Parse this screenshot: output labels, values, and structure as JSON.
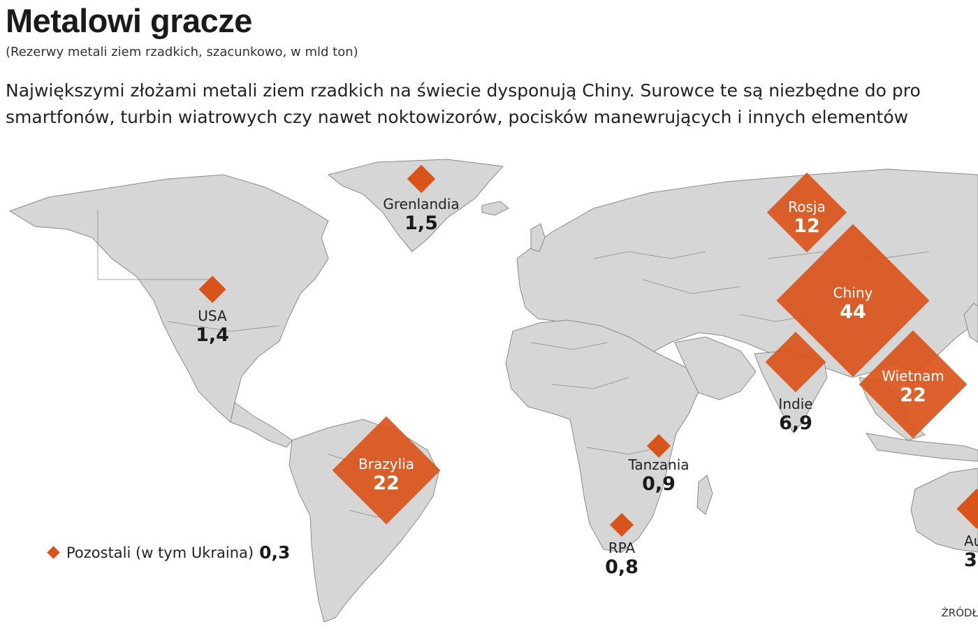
{
  "header": {
    "title": "Metalowi gracze",
    "subtitle": "(Rezerwy metali ziem rzadkich, szacunkowo, w mld ton)",
    "lead_line1": "Największymi złożami metali ziem rzadkich na świecie dysponują Chiny. Surowce te są niezbędne do pro",
    "lead_line2": "smartfonów, turbin wiatrowych czy nawet noktowizorów, pocisków manewrujących i innych elementów"
  },
  "colors": {
    "marker": "#d9541a",
    "land": "#d6d6d6",
    "border": "#8a8a8a",
    "water": "#ffffff"
  },
  "markers": [
    {
      "id": "grenlandia",
      "name": "Grenlandia",
      "value": "1,5",
      "amount": 1.5
    },
    {
      "id": "rosja",
      "name": "Rosja",
      "value": "12",
      "amount": 12
    },
    {
      "id": "usa",
      "name": "USA",
      "value": "1,4",
      "amount": 1.4
    },
    {
      "id": "chiny",
      "name": "Chiny",
      "value": "44",
      "amount": 44
    },
    {
      "id": "indie",
      "name": "Indie",
      "value": "6,9",
      "amount": 6.9
    },
    {
      "id": "wietnam",
      "name": "Wietnam",
      "value": "22",
      "amount": 22
    },
    {
      "id": "brazylia",
      "name": "Brazylia",
      "value": "22",
      "amount": 22
    },
    {
      "id": "tanzania",
      "name": "Tanzania",
      "value": "0,9",
      "amount": 0.9
    },
    {
      "id": "rpa",
      "name": "RPA",
      "value": "0,8",
      "amount": 0.8
    },
    {
      "id": "australia",
      "name": "Aust",
      "value": "3",
      "amount": 3
    }
  ],
  "legend": {
    "label": "Pozostali (w tym Ukraina)",
    "value": "0,3"
  },
  "source": "ŹRÓDŁ"
}
